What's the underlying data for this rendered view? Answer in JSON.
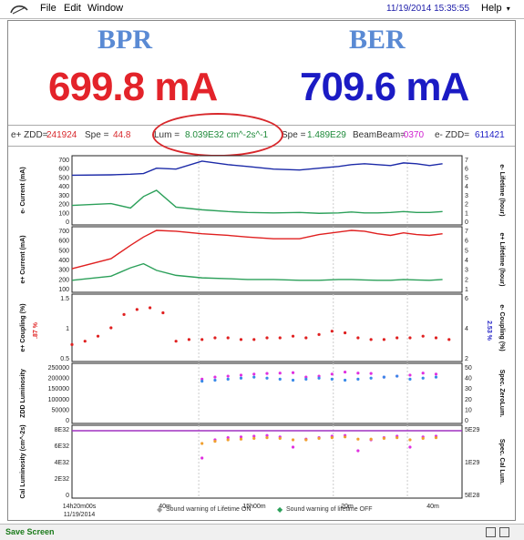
{
  "menubar": {
    "file": "File",
    "edit": "Edit",
    "window": "Window",
    "datetime": "11/19/2014 15:35:55",
    "help": "Help"
  },
  "banner": {
    "left_name": "BPR",
    "left_value": "699.8 mA",
    "right_name": "BER",
    "right_value": "709.6 mA",
    "left_color": "#e3232a",
    "right_color": "#1b1bc4",
    "name_color": "#5a8ad4"
  },
  "status": {
    "ezdd_label": "e+ ZDD=",
    "ezdd_value": "241924",
    "spe_label": "Spe =",
    "spe_value": "44.8",
    "lum_label": "Lum =",
    "lum_value": "8.039E32 cm^-2s^-1",
    "spe2_label": "Spe =",
    "spe2_value": "1.489E29",
    "bb_label": "BeamBeam=",
    "bb_value": ".0370",
    "emzdd_label": "e- ZDD=",
    "emzdd_value": "611421"
  },
  "panels": {
    "p1_left": "e- Current (mA)",
    "p1_right": "e- Lifetime (hour)",
    "p2_left": "e+ Current (mA)",
    "p2_right": "e+ Lifetime (hour)",
    "p3_left": "e+ Coupling (%)",
    "p3_right": "e- Coupling (%)",
    "p3_left_val": ".87 %",
    "p3_right_val": "2.53 %",
    "p4_left": "ZDD Luminosity",
    "p4_right": "Spec. ZeroLum.",
    "p5_left": "Cal Luminosity (cm^-2s)",
    "p5_right": "Spec. Cal Lum."
  },
  "chart_data": [
    {
      "type": "line",
      "panel": "e- Current / Lifetime",
      "yticks_left": [
        "700",
        "600",
        "500",
        "400",
        "300",
        "200",
        "100",
        "0"
      ],
      "yticks_right": [
        "7",
        "6",
        "5",
        "4",
        "3",
        "2",
        "1",
        "0"
      ],
      "ylim": [
        0,
        700
      ],
      "series": [
        {
          "name": "e- Current",
          "color": "#1c2aa8",
          "x": [
            0,
            6,
            9,
            11,
            13,
            16,
            20,
            24,
            27,
            31,
            35,
            38,
            41,
            43,
            45,
            47,
            49,
            51,
            53,
            55,
            57
          ],
          "y": [
            520,
            525,
            532,
            540,
            600,
            590,
            680,
            640,
            620,
            590,
            580,
            600,
            620,
            640,
            650,
            640,
            630,
            660,
            650,
            630,
            650
          ]
        },
        {
          "name": "e- Lifetime",
          "color": "#2ca05a",
          "x": [
            0,
            6,
            9,
            11,
            13,
            16,
            20,
            24,
            27,
            31,
            35,
            38,
            41,
            43,
            45,
            47,
            49,
            51,
            53,
            55,
            57
          ],
          "y": [
            180,
            200,
            150,
            280,
            350,
            160,
            130,
            110,
            100,
            95,
            100,
            90,
            95,
            105,
            95,
            95,
            100,
            110,
            100,
            100,
            110
          ]
        }
      ]
    },
    {
      "type": "line",
      "panel": "e+ Current / Lifetime",
      "yticks_left": [
        "700",
        "600",
        "500",
        "400",
        "300",
        "200",
        "100"
      ],
      "yticks_right": [
        "7",
        "6",
        "5",
        "4",
        "3",
        "2",
        "1"
      ],
      "ylim": [
        0,
        700
      ],
      "series": [
        {
          "name": "e+ Current",
          "color": "#e02020",
          "x": [
            0,
            6,
            9,
            11,
            13,
            16,
            20,
            24,
            27,
            31,
            35,
            38,
            41,
            43,
            45,
            47,
            49,
            51,
            53,
            55,
            57
          ],
          "y": [
            240,
            360,
            520,
            620,
            700,
            690,
            660,
            640,
            620,
            600,
            600,
            650,
            680,
            700,
            690,
            660,
            640,
            670,
            650,
            640,
            660
          ]
        },
        {
          "name": "e+ Lifetime",
          "color": "#2ca05a",
          "x": [
            0,
            6,
            9,
            11,
            13,
            16,
            20,
            24,
            27,
            31,
            35,
            38,
            41,
            43,
            45,
            47,
            49,
            51,
            53,
            55,
            57
          ],
          "y": [
            100,
            150,
            250,
            300,
            220,
            160,
            130,
            120,
            110,
            110,
            100,
            100,
            110,
            110,
            105,
            100,
            100,
            110,
            105,
            100,
            110
          ]
        }
      ]
    },
    {
      "type": "scatter",
      "panel": "Coupling",
      "yticks_left": [
        "1.5",
        "1",
        "0.5"
      ],
      "yticks_right": [
        "6",
        "4",
        "2"
      ],
      "ylim": [
        0.3,
        2.1
      ],
      "series": [
        {
          "name": "e+ Coupling",
          "color": "#e02020",
          "x": [
            0,
            2,
            4,
            6,
            8,
            10,
            12,
            14,
            16,
            18,
            20,
            22,
            24,
            26,
            28,
            30,
            32,
            34,
            36,
            38,
            40,
            42,
            44,
            46,
            48,
            50,
            52,
            54,
            56,
            58
          ],
          "y": [
            0.7,
            0.8,
            0.95,
            1.2,
            1.6,
            1.75,
            1.8,
            1.65,
            0.8,
            0.85,
            0.85,
            0.9,
            0.9,
            0.85,
            0.85,
            0.9,
            0.9,
            0.95,
            0.9,
            1.0,
            1.1,
            1.05,
            0.9,
            0.85,
            0.85,
            0.9,
            0.9,
            0.95,
            0.9,
            0.85
          ]
        }
      ]
    },
    {
      "type": "scatter",
      "panel": "ZDD Luminosity",
      "yticks_left": [
        "250000",
        "200000",
        "150000",
        "100000",
        "50000",
        "0"
      ],
      "yticks_right": [
        "50",
        "40",
        "30",
        "20",
        "10",
        "0"
      ],
      "ylim": [
        0,
        260000
      ],
      "series": [
        {
          "name": "ZDD Lum",
          "color": "#e030e0",
          "x": [
            20,
            22,
            24,
            26,
            28,
            30,
            32,
            34,
            36,
            38,
            40,
            42,
            44,
            46,
            48,
            50,
            52,
            54,
            56
          ],
          "y": [
            200000,
            210000,
            215000,
            220000,
            225000,
            228000,
            230000,
            232000,
            210000,
            215000,
            225000,
            235000,
            230000,
            228000,
            210000,
            215000,
            220000,
            230000,
            225000
          ]
        },
        {
          "name": "Spec Lum",
          "color": "#3a8ae8",
          "x": [
            20,
            22,
            24,
            26,
            28,
            30,
            32,
            34,
            36,
            38,
            40,
            42,
            44,
            46,
            48,
            50,
            52,
            54,
            56
          ],
          "y": [
            190000,
            195000,
            200000,
            205000,
            210000,
            205000,
            200000,
            195000,
            200000,
            205000,
            200000,
            195000,
            200000,
            205000,
            210000,
            215000,
            200000,
            205000,
            210000
          ]
        }
      ]
    },
    {
      "type": "scatter",
      "panel": "Cal Luminosity",
      "yticks_left": [
        "8E32",
        "6E32",
        "4E32",
        "2E32",
        "0"
      ],
      "yticks_right": [
        "5E29",
        "1E29",
        "5E28"
      ],
      "ylim": [
        0,
        9e+32
      ],
      "series": [
        {
          "name": "Cal Lum",
          "color": "#e030e0",
          "x": [
            20,
            22,
            24,
            26,
            28,
            30,
            32,
            34,
            36,
            38,
            40,
            42,
            44,
            46,
            48,
            50,
            52,
            54,
            56
          ],
          "y": [
            5e+32,
            7.5e+32,
            7.8e+32,
            7.9e+32,
            8e+32,
            8.1e+32,
            7.9e+32,
            6.5e+32,
            7.6e+32,
            7.8e+32,
            8e+32,
            8.1e+32,
            6e+32,
            7.5e+32,
            7.8e+32,
            8e+32,
            6.5e+32,
            7.9e+32,
            8e+32
          ]
        },
        {
          "name": "Spec Cal",
          "color": "#f0a030",
          "x": [
            20,
            22,
            24,
            26,
            28,
            30,
            32,
            34,
            36,
            38,
            40,
            42,
            44,
            46,
            48,
            50,
            52,
            54,
            56
          ],
          "y": [
            7e+32,
            7.3e+32,
            7.5e+32,
            7.6e+32,
            7.7e+32,
            7.8e+32,
            7.7e+32,
            7.5e+32,
            7.5e+32,
            7.7e+32,
            7.8e+32,
            7.9e+32,
            7.6e+32,
            7.6e+32,
            7.7e+32,
            7.8e+32,
            7.5e+32,
            7.7e+32,
            7.8e+32
          ]
        }
      ]
    }
  ],
  "xaxis": {
    "ticks": [
      "14h20m00s",
      "40m",
      "15h00m",
      "20m",
      "40m"
    ],
    "date": "11/19/2014"
  },
  "legend": {
    "on": "Sound warning of Lifetime ON",
    "off": "Sound warning of lifetime OFF"
  },
  "statusbar": {
    "save": "Save Screen"
  }
}
